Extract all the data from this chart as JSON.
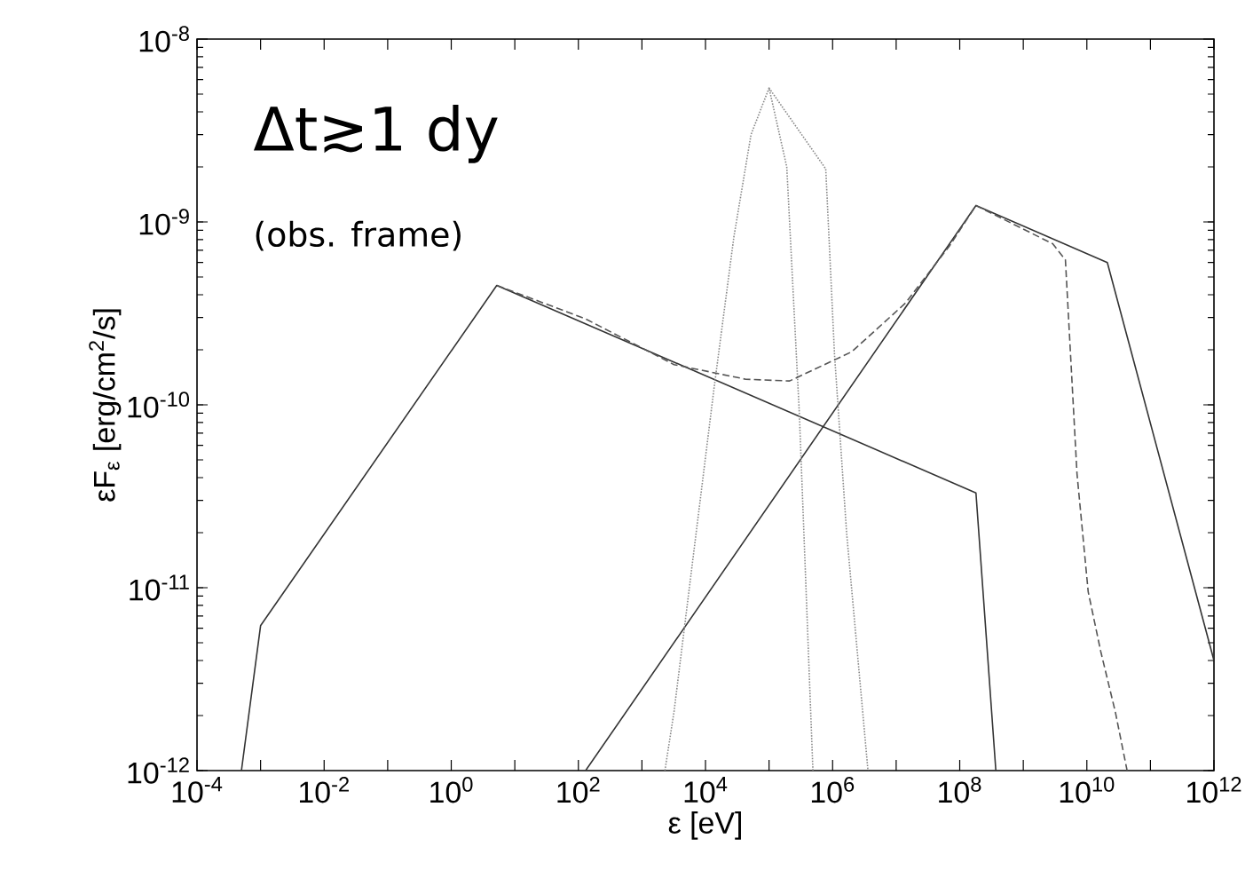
{
  "chart_data": {
    "type": "line",
    "xlabel": "ε [eV]",
    "ylabel": "εF$_{ε}$ [erg/cm$^{2}$/s]",
    "log": "xy",
    "annotations": [
      "Δt≳1 dy",
      "(obs. frame)"
    ],
    "xlim": [
      0.0001,
      1000000000000.0
    ],
    "ylim": [
      1e-12,
      1e-08
    ],
    "xticks": [
      {
        "value": 0.0001,
        "label": "10$^{-4}$"
      },
      {
        "value": 0.001,
        "label": null
      },
      {
        "value": 0.01,
        "label": "10$^{-2}$"
      },
      {
        "value": 0.1,
        "label": null
      },
      {
        "value": 1,
        "label": "10$^{0}$"
      },
      {
        "value": 10,
        "label": null
      },
      {
        "value": 100,
        "label": "10$^{2}$"
      },
      {
        "value": 1000.0,
        "label": null
      },
      {
        "value": 10000.0,
        "label": "10$^{4}$"
      },
      {
        "value": 100000.0,
        "label": null
      },
      {
        "value": 1000000.0,
        "label": "10$^{6}$"
      },
      {
        "value": 10000000.0,
        "label": null
      },
      {
        "value": 100000000.0,
        "label": "10$^{8}$"
      },
      {
        "value": 1000000000.0,
        "label": null
      },
      {
        "value": 10000000000.0,
        "label": "10$^{10}$"
      },
      {
        "value": 100000000000.0,
        "label": null
      },
      {
        "value": 1000000000000.0,
        "label": "10$^{12}$"
      }
    ],
    "yticks": [
      {
        "value": 1e-12,
        "label": "10$^{-12}$"
      },
      {
        "value": 1e-11,
        "label": "10$^{-11}$"
      },
      {
        "value": 1e-10,
        "label": "10$^{-10}$"
      },
      {
        "value": 1e-09,
        "label": "10$^{-9}$"
      },
      {
        "value": 1e-08,
        "label": "10$^{-8}$"
      }
    ],
    "grid": false,
    "marker": "none",
    "series": [
      {
        "color": "#333333",
        "line_style": "solid",
        "x": [
          0.0005,
          0.001,
          5.2,
          180000000.0,
          370000000.0
        ],
        "values": [
          1e-12,
          6.2e-12,
          4.5e-10,
          3.3e-11,
          1e-12
        ]
      },
      {
        "color": "#333333",
        "line_style": "solid",
        "x": [
          130,
          180000000.0,
          21000000000.0,
          1000000000000.0
        ],
        "values": [
          1e-12,
          1.23e-09,
          6e-10,
          4e-12
        ]
      },
      {
        "color": "#888888",
        "line_style": "dotted",
        "x": [
          2300,
          3200,
          13500,
          28000,
          52000,
          100000.0,
          190000.0,
          300000.0,
          490000.0
        ],
        "values": [
          1e-12,
          2.1e-12,
          1.2e-10,
          8.3e-10,
          3e-09,
          5.4e-09,
          2e-09,
          8.9e-11,
          1e-12
        ]
      },
      {
        "color": "#888888",
        "line_style": "dotted",
        "x": [
          100000.0,
          780000.0,
          1070000.0,
          1660000.0,
          3600000.0
        ],
        "values": [
          5.4e-09,
          1.95e-09,
          1.9e-10,
          2e-11,
          1e-12
        ]
      },
      {
        "color": "#555555",
        "line_style": "dashed",
        "x": [
          5.2,
          130,
          3200,
          43000,
          210000.0,
          2000000.0,
          14000000.0,
          69000000.0,
          180000000.0,
          2900000000.0,
          4600000000.0,
          7000000000.0,
          10500000000.0,
          16500000000.0,
          28000000000.0,
          43000000000.0
        ],
        "values": [
          4.5e-10,
          2.95e-10,
          1.66e-10,
          1.38e-10,
          1.35e-10,
          1.95e-10,
          3.6e-10,
          7.4e-10,
          1.23e-09,
          7.6e-10,
          6.2e-10,
          4.2e-11,
          9.5e-12,
          4.5e-12,
          2.1e-12,
          1e-12
        ]
      }
    ]
  }
}
